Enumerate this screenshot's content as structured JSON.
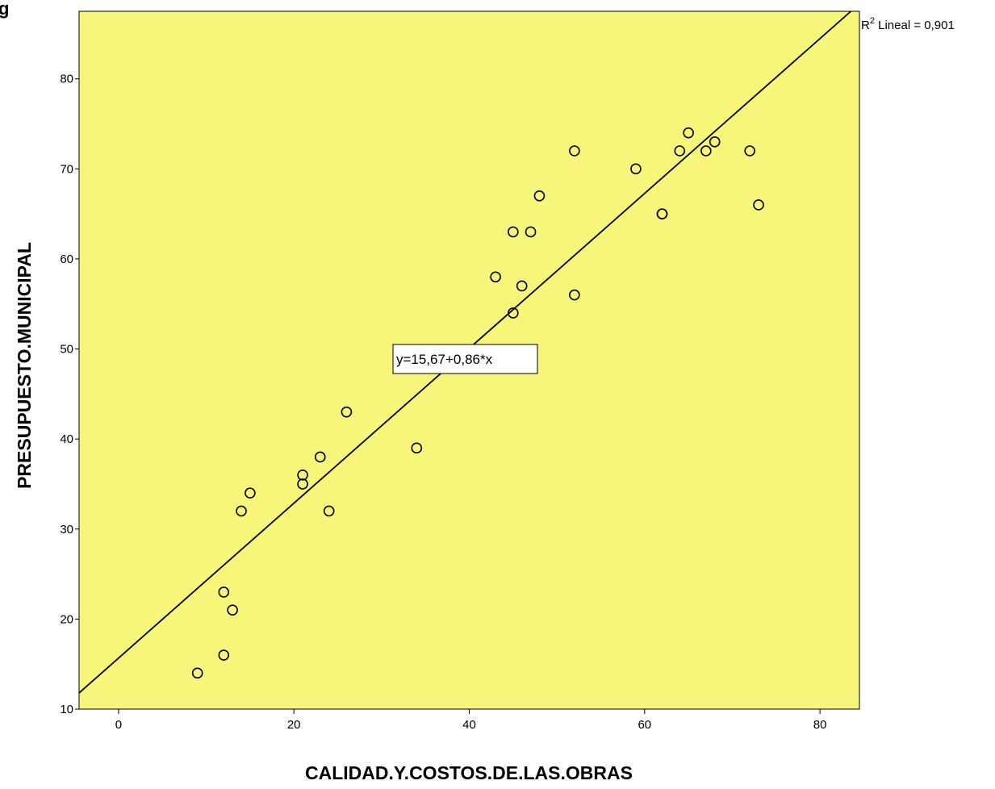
{
  "corner_text": "g",
  "chart_data": {
    "type": "scatter",
    "xlabel": "CALIDAD.Y.COSTOS.DE.LAS.OBRAS",
    "ylabel": "PRESUPUESTO.MUNICIPAL",
    "xlim": [
      -4.5,
      84.5
    ],
    "ylim": [
      10,
      87.5
    ],
    "xticks": [
      0,
      20,
      40,
      60,
      80
    ],
    "yticks": [
      10,
      20,
      30,
      40,
      50,
      60,
      70,
      80
    ],
    "background_color": "#f7f57a",
    "fit_line": {
      "intercept": 15.67,
      "slope": 0.86,
      "equation_label": "y=15,67+0,86*x"
    },
    "r2_label": {
      "prefix": "R",
      "superscript": "2",
      "text": " Lineal = 0,901"
    },
    "points": [
      {
        "x": 9,
        "y": 14
      },
      {
        "x": 12,
        "y": 16
      },
      {
        "x": 12,
        "y": 23
      },
      {
        "x": 13,
        "y": 21
      },
      {
        "x": 14,
        "y": 32
      },
      {
        "x": 15,
        "y": 34
      },
      {
        "x": 21,
        "y": 35
      },
      {
        "x": 21,
        "y": 36
      },
      {
        "x": 23,
        "y": 38
      },
      {
        "x": 24,
        "y": 32
      },
      {
        "x": 26,
        "y": 43
      },
      {
        "x": 32,
        "y": 48
      },
      {
        "x": 34,
        "y": 39
      },
      {
        "x": 43,
        "y": 58
      },
      {
        "x": 45,
        "y": 54
      },
      {
        "x": 45,
        "y": 63
      },
      {
        "x": 46,
        "y": 57
      },
      {
        "x": 47,
        "y": 63
      },
      {
        "x": 48,
        "y": 67
      },
      {
        "x": 52,
        "y": 56
      },
      {
        "x": 52,
        "y": 72
      },
      {
        "x": 59,
        "y": 70
      },
      {
        "x": 62,
        "y": 65
      },
      {
        "x": 62,
        "y": 65
      },
      {
        "x": 64,
        "y": 72
      },
      {
        "x": 65,
        "y": 74
      },
      {
        "x": 67,
        "y": 72
      },
      {
        "x": 68,
        "y": 73
      },
      {
        "x": 72,
        "y": 72
      },
      {
        "x": 73,
        "y": 66
      }
    ]
  }
}
